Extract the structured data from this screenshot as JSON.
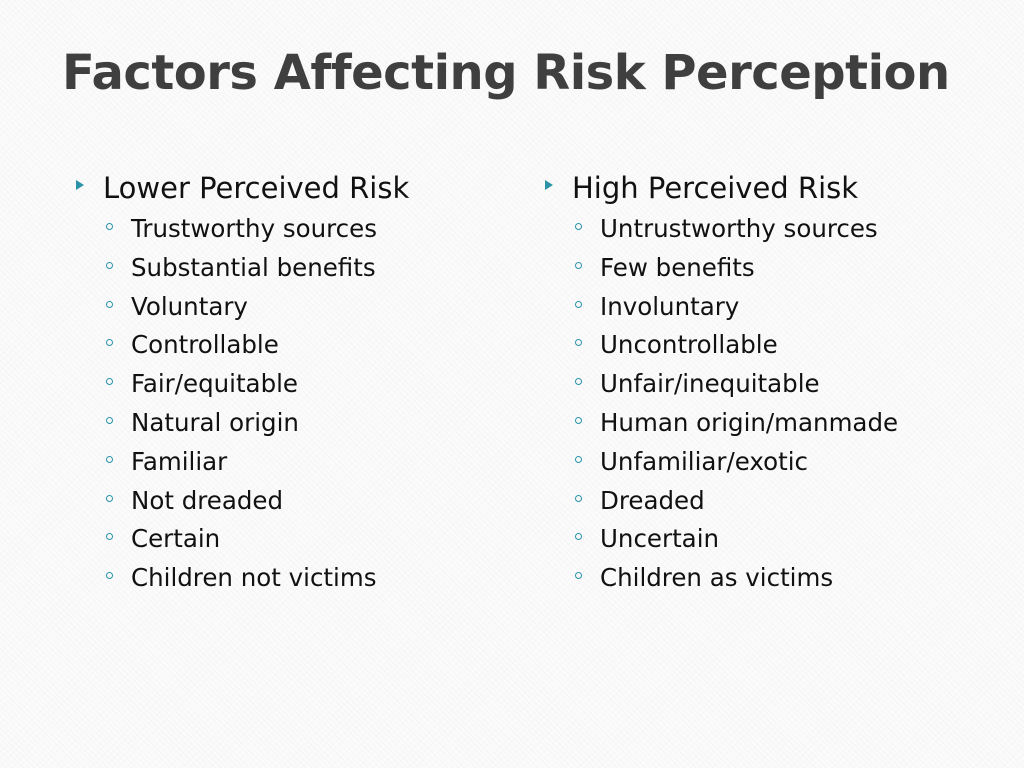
{
  "slide": {
    "title": "Factors Affecting Risk Perception",
    "accent_color": "#2a93a8",
    "title_color": "#3f3f3f",
    "columns": [
      {
        "heading": "Lower Perceived Risk",
        "items": [
          "Trustworthy sources",
          "Substantial benefits",
          "Voluntary",
          "Controllable",
          "Fair/equitable",
          "Natural origin",
          "Familiar",
          "Not dreaded",
          "Certain",
          "Children not victims"
        ]
      },
      {
        "heading": "High Perceived Risk",
        "items": [
          "Untrustworthy sources",
          "Few benefits",
          "Involuntary",
          "Uncontrollable",
          "Unfair/inequitable",
          "Human origin/manmade",
          "Unfamiliar/exotic",
          "Dreaded",
          "Uncertain",
          "Children as victims"
        ]
      }
    ]
  }
}
